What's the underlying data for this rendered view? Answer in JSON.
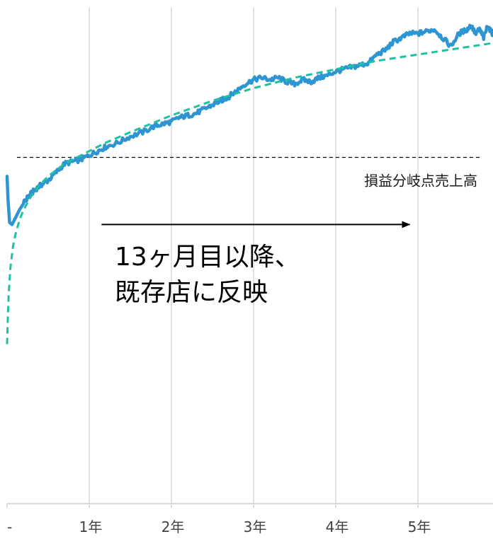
{
  "chart_data": {
    "type": "line",
    "title": "",
    "xlabel": "",
    "ylabel": "",
    "x_unit": "year",
    "xlim": [
      0,
      6
    ],
    "ylim": [
      0,
      1.2
    ],
    "grid": {
      "vertical": true,
      "horizontal": false
    },
    "x_ticks": [
      {
        "x": 0,
        "label": "-"
      },
      {
        "x": 1,
        "label": "1年"
      },
      {
        "x": 2,
        "label": "2年"
      },
      {
        "x": 3,
        "label": "3年"
      },
      {
        "x": 4,
        "label": "4年"
      },
      {
        "x": 5,
        "label": "5年"
      }
    ],
    "series": [
      {
        "style": "solid",
        "color": "#2e95d3",
        "x": [
          0,
          0.01,
          0.03,
          0.06,
          0.1,
          0.15,
          0.2,
          0.25,
          0.3,
          0.35,
          0.42,
          0.5,
          0.6,
          0.7,
          0.8,
          0.9,
          1.0,
          1.1,
          1.2,
          1.35,
          1.5,
          1.65,
          1.8,
          1.9,
          2.0,
          2.1,
          2.2,
          2.3,
          2.4,
          2.5,
          2.6,
          2.65,
          2.7,
          2.8,
          2.9,
          3.0,
          3.1,
          3.2,
          3.3,
          3.4,
          3.5,
          3.6,
          3.7,
          3.8,
          3.9,
          4.0,
          4.1,
          4.2,
          4.3,
          4.4,
          4.5,
          4.6,
          4.7,
          4.8,
          4.9,
          5.0,
          5.1,
          5.2,
          5.3,
          5.4,
          5.5,
          5.6,
          5.65,
          5.7,
          5.75,
          5.8,
          5.85,
          5.9,
          5.95,
          6.0
        ],
        "values": [
          0.78,
          0.73,
          0.67,
          0.665,
          0.68,
          0.7,
          0.715,
          0.73,
          0.74,
          0.75,
          0.76,
          0.77,
          0.79,
          0.81,
          0.815,
          0.82,
          0.83,
          0.84,
          0.85,
          0.86,
          0.875,
          0.885,
          0.9,
          0.905,
          0.91,
          0.92,
          0.925,
          0.93,
          0.94,
          0.95,
          0.96,
          0.965,
          0.97,
          0.985,
          1.0,
          1.01,
          1.015,
          1.01,
          1.015,
          1.005,
          1.0,
          1.01,
          1.005,
          1.015,
          1.02,
          1.03,
          1.035,
          1.04,
          1.045,
          1.05,
          1.07,
          1.08,
          1.1,
          1.11,
          1.12,
          1.12,
          1.125,
          1.13,
          1.11,
          1.09,
          1.12,
          1.13,
          1.14,
          1.12,
          1.13,
          1.11,
          1.14,
          1.12,
          1.13,
          1.13
        ]
      },
      {
        "style": "dashed",
        "color": "#1dc2a2",
        "x": [
          0.0,
          0.01,
          0.02,
          0.04,
          0.07,
          0.1,
          0.15,
          0.2,
          0.3,
          0.4,
          0.5,
          0.6,
          0.7,
          0.8,
          1.0,
          1.2,
          1.5,
          2.0,
          2.5,
          3.0,
          3.5,
          4.0,
          4.5,
          5.0,
          5.5,
          6.0
        ],
        "values": [
          0.38,
          0.45,
          0.5,
          0.56,
          0.61,
          0.64,
          0.675,
          0.7,
          0.735,
          0.76,
          0.78,
          0.795,
          0.81,
          0.82,
          0.84,
          0.86,
          0.885,
          0.925,
          0.96,
          0.99,
          1.015,
          1.035,
          1.055,
          1.07,
          1.085,
          1.1
        ]
      }
    ],
    "reference_line": {
      "value": 0.825,
      "x_range": [
        0.12,
        5.75
      ],
      "label": "損益分岐点売上高",
      "color": "#000000"
    },
    "annotation": {
      "arrow_from_x": 1.15,
      "arrow_to_x": 4.9,
      "arrow_y": 0.665,
      "text_lines": [
        "13ヶ月目以降、",
        "既存店に反映"
      ]
    }
  }
}
